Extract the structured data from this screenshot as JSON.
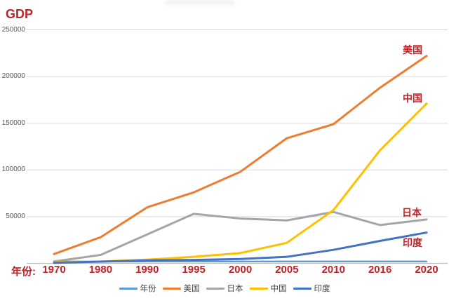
{
  "chart_data": {
    "type": "line",
    "title": "GDP",
    "x_prefix": "年份:",
    "categories": [
      "1970",
      "1980",
      "1990",
      "1995",
      "2000",
      "2005",
      "2010",
      "2016",
      "2020"
    ],
    "ylim": [
      0,
      250000
    ],
    "ytick_values": [
      50000,
      100000,
      150000,
      200000,
      250000
    ],
    "ytick_labels": [
      "50000",
      "100000",
      "150000",
      "200000",
      "250000"
    ],
    "grid": true,
    "legend_position": "bottom-center",
    "series": [
      {
        "key": "years",
        "name": "年份",
        "color": "#5B9BD5",
        "values": [
          1970,
          1980,
          1990,
          1995,
          2000,
          2005,
          2010,
          2016,
          2020
        ]
      },
      {
        "key": "usa",
        "name": "美国",
        "color": "#ED7D31",
        "values": [
          10000,
          28000,
          60000,
          76000,
          98000,
          134000,
          149000,
          188000,
          222000
        ]
      },
      {
        "key": "japan",
        "name": "日本",
        "color": "#A5A5A5",
        "values": [
          2100,
          9000,
          31000,
          53000,
          48000,
          46000,
          55000,
          41000,
          47000
        ]
      },
      {
        "key": "china",
        "name": "中国",
        "color": "#FFC000",
        "values": [
          900,
          2000,
          4000,
          7000,
          11000,
          22000,
          57000,
          121000,
          171000
        ]
      },
      {
        "key": "india",
        "name": "印度",
        "color": "#4472C4",
        "values": [
          600,
          1900,
          3200,
          3700,
          4700,
          7000,
          14500,
          24000,
          33000
        ]
      }
    ],
    "annotations": [
      {
        "key": "usa",
        "text": "美国",
        "x": 588,
        "y": 71
      },
      {
        "key": "china",
        "text": "中国",
        "x": 588,
        "y": 140
      },
      {
        "key": "japan",
        "text": "日本",
        "x": 587,
        "y": 303
      },
      {
        "key": "india",
        "text": "印度",
        "x": 588,
        "y": 346
      }
    ],
    "colors": {
      "red_label": "#C0222A",
      "ytick_text": "#595959",
      "legend_text": "#404040",
      "gridline": "#D9D9D9",
      "axis_line": "#BFBFBF"
    }
  }
}
